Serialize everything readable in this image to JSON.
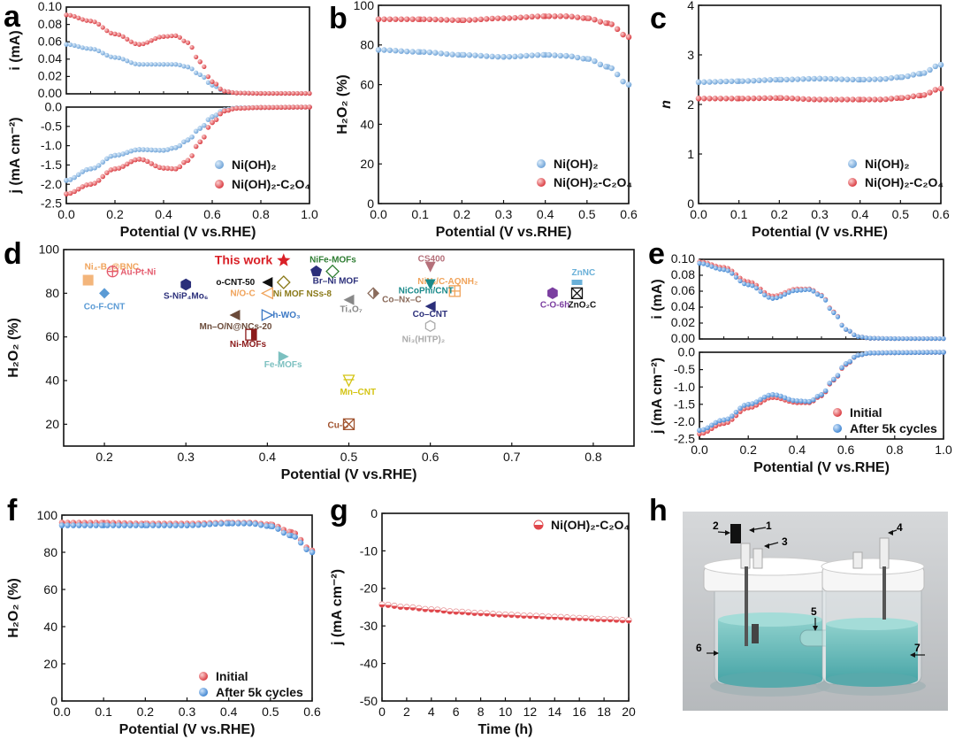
{
  "panels": {
    "a": "a",
    "b": "b",
    "c": "c",
    "d": "d",
    "e": "e",
    "f": "f",
    "g": "g",
    "h": "h"
  },
  "colors": {
    "blue": "#7aaedc",
    "red": "#e0464b",
    "text": "#111111"
  },
  "legend": {
    "ni_oh2": "Ni(OH)₂",
    "ni_oh2_c2o4": "Ni(OH)₂-C₂O₄",
    "initial": "Initial",
    "after": "After 5k cycles"
  },
  "chart_data": [
    {
      "id": "a-top",
      "type": "line",
      "panel": "a",
      "ylabel": "i (mA)",
      "xlabel": "",
      "xlim": [
        0,
        1
      ],
      "ylim": [
        0,
        0.1
      ],
      "yticks": [
        "0.00",
        "0.02",
        "0.04",
        "0.06",
        "0.08",
        "0.10"
      ],
      "series": [
        {
          "name": "Ni(OH)₂",
          "color": "#7aaedc",
          "x": [
            0,
            0.1,
            0.2,
            0.3,
            0.4,
            0.45,
            0.5,
            0.55,
            0.6,
            0.65,
            0.7,
            0.8,
            1.0
          ],
          "y": [
            0.057,
            0.052,
            0.042,
            0.034,
            0.034,
            0.034,
            0.031,
            0.022,
            0.01,
            0.003,
            0.001,
            0.0005,
            0.0005
          ]
        },
        {
          "name": "Ni(OH)₂-C₂O₄",
          "color": "#e0464b",
          "x": [
            0,
            0.1,
            0.2,
            0.3,
            0.4,
            0.45,
            0.5,
            0.55,
            0.6,
            0.65,
            0.7,
            0.8,
            1.0
          ],
          "y": [
            0.091,
            0.084,
            0.069,
            0.057,
            0.066,
            0.067,
            0.059,
            0.037,
            0.014,
            0.003,
            0.001,
            0.0005,
            0.0005
          ]
        }
      ]
    },
    {
      "id": "a-bottom",
      "type": "line",
      "panel": "a",
      "ylabel": "j (mA cm⁻²)",
      "xlabel": "Potential (V vs.RHE)",
      "xlim": [
        0,
        1
      ],
      "ylim": [
        -2.5,
        0
      ],
      "xticks": [
        "0.0",
        "0.2",
        "0.4",
        "0.6",
        "0.8",
        "1.0"
      ],
      "yticks": [
        "-2.5",
        "-2.0",
        "-1.5",
        "-1.0",
        "-0.5",
        "0.0"
      ],
      "series": [
        {
          "name": "Ni(OH)₂",
          "color": "#7aaedc",
          "x": [
            0,
            0.1,
            0.2,
            0.3,
            0.4,
            0.45,
            0.5,
            0.55,
            0.6,
            0.65,
            0.7,
            0.8,
            1.0
          ],
          "y": [
            -1.9,
            -1.6,
            -1.25,
            -1.1,
            -1.12,
            -1.05,
            -0.85,
            -0.55,
            -0.25,
            -0.07,
            -0.02,
            -0.01,
            0
          ]
        },
        {
          "name": "Ni(OH)₂-C₂O₄",
          "color": "#e0464b",
          "x": [
            0,
            0.1,
            0.2,
            0.3,
            0.4,
            0.45,
            0.5,
            0.55,
            0.6,
            0.65,
            0.7,
            0.8,
            1.0
          ],
          "y": [
            -2.25,
            -2.0,
            -1.6,
            -1.35,
            -1.58,
            -1.6,
            -1.38,
            -0.9,
            -0.4,
            -0.1,
            -0.03,
            -0.01,
            0
          ]
        }
      ]
    },
    {
      "id": "b",
      "type": "line",
      "panel": "b",
      "ylabel": "H₂O₂ (%)",
      "xlabel": "Potential (V vs.RHE)",
      "xlim": [
        0,
        0.6
      ],
      "ylim": [
        0,
        100
      ],
      "xticks": [
        "0.0",
        "0.1",
        "0.2",
        "0.3",
        "0.4",
        "0.5",
        "0.6"
      ],
      "yticks": [
        "0",
        "20",
        "40",
        "60",
        "80",
        "100"
      ],
      "series": [
        {
          "name": "Ni(OH)₂",
          "color": "#7aaedc",
          "x": [
            0,
            0.1,
            0.2,
            0.3,
            0.4,
            0.45,
            0.5,
            0.55,
            0.6
          ],
          "y": [
            77.5,
            76.5,
            75,
            74,
            75,
            74.5,
            73,
            69,
            60
          ]
        },
        {
          "name": "Ni(OH)₂-C₂O₄",
          "color": "#e0464b",
          "x": [
            0,
            0.1,
            0.2,
            0.3,
            0.4,
            0.45,
            0.5,
            0.55,
            0.6
          ],
          "y": [
            93,
            93,
            92.5,
            93.5,
            94.5,
            94.5,
            93.5,
            91,
            84
          ]
        }
      ]
    },
    {
      "id": "c",
      "type": "line",
      "panel": "c",
      "ylabel": "n",
      "xlabel": "Potential (V vs.RHE)",
      "xlim": [
        0,
        0.6
      ],
      "ylim": [
        0,
        4
      ],
      "xticks": [
        "0.0",
        "0.1",
        "0.2",
        "0.3",
        "0.4",
        "0.5",
        "0.6"
      ],
      "yticks": [
        "0",
        "1",
        "2",
        "3",
        "4"
      ],
      "series": [
        {
          "name": "Ni(OH)₂",
          "color": "#7aaedc",
          "x": [
            0,
            0.1,
            0.2,
            0.3,
            0.4,
            0.45,
            0.5,
            0.55,
            0.6
          ],
          "y": [
            2.45,
            2.47,
            2.5,
            2.52,
            2.5,
            2.51,
            2.55,
            2.62,
            2.8
          ]
        },
        {
          "name": "Ni(OH)₂-C₂O₄",
          "color": "#e0464b",
          "x": [
            0,
            0.1,
            0.2,
            0.3,
            0.4,
            0.45,
            0.5,
            0.55,
            0.6
          ],
          "y": [
            2.12,
            2.12,
            2.13,
            2.1,
            2.1,
            2.1,
            2.13,
            2.18,
            2.32
          ]
        }
      ]
    },
    {
      "id": "d",
      "type": "scatter",
      "panel": "d",
      "ylabel": "H₂O₂ (%)",
      "xlabel": "Potential (V vs.RHE)",
      "xlim": [
        0.15,
        0.85
      ],
      "ylim": [
        10,
        100
      ],
      "xticks": [
        "0.2",
        "0.3",
        "0.4",
        "0.5",
        "0.6",
        "0.7",
        "0.8"
      ],
      "yticks": [
        "20",
        "40",
        "60",
        "80",
        "100"
      ],
      "points": [
        {
          "label": "This work",
          "x": 0.42,
          "y": 95,
          "color": "#d92027",
          "marker": "star"
        },
        {
          "label": "Ni₄-B₄@BNC",
          "x": 0.18,
          "y": 86,
          "color": "#f0a35a",
          "marker": "square"
        },
        {
          "label": "Au-Pt-Ni",
          "x": 0.21,
          "y": 90,
          "color": "#e45a6c",
          "marker": "circle-cross"
        },
        {
          "label": "Co-F-CNT",
          "x": 0.2,
          "y": 80,
          "color": "#5b9bd5",
          "marker": "diamond"
        },
        {
          "label": "S-NiP₄Mo₆",
          "x": 0.3,
          "y": 84,
          "color": "#2b2f7a",
          "marker": "hexagon"
        },
        {
          "label": "o-CNT-50",
          "x": 0.4,
          "y": 85,
          "color": "#111111",
          "marker": "triangle-left"
        },
        {
          "label": "N/O-C",
          "x": 0.4,
          "y": 80,
          "color": "#f0a35a",
          "marker": "triangle-left-open"
        },
        {
          "label": "Ni MOF NSs-8",
          "x": 0.42,
          "y": 85,
          "color": "#8b7a1a",
          "marker": "diamond-open"
        },
        {
          "label": "Br–Ni MOF",
          "x": 0.46,
          "y": 90,
          "color": "#2b2f7a",
          "marker": "pentagon"
        },
        {
          "label": "NiFe-MOFs",
          "x": 0.48,
          "y": 90,
          "color": "#2e7d32",
          "marker": "diamond-open"
        },
        {
          "label": "h-WO₃",
          "x": 0.4,
          "y": 70,
          "color": "#3b78c4",
          "marker": "triangle-right-open"
        },
        {
          "label": "Mn–O/N@NCs-20",
          "x": 0.36,
          "y": 70,
          "color": "#6b4b3a",
          "marker": "triangle-left"
        },
        {
          "label": "Ni-MOFs",
          "x": 0.38,
          "y": 61,
          "color": "#8b1a1a",
          "marker": "half-square"
        },
        {
          "label": "Fe-MOFs",
          "x": 0.42,
          "y": 51,
          "color": "#7cc0c0",
          "marker": "triangle-right"
        },
        {
          "label": "Ti₄O₇",
          "x": 0.5,
          "y": 77,
          "color": "#888888",
          "marker": "triangle-left"
        },
        {
          "label": "Co–Nx–C",
          "x": 0.53,
          "y": 80,
          "color": "#8a6a5a",
          "marker": "diamond-half"
        },
        {
          "label": "CS400",
          "x": 0.6,
          "y": 92,
          "color": "#b5707a",
          "marker": "triangle-down"
        },
        {
          "label": "NiNₓ/C-AQNH₂",
          "x": 0.63,
          "y": 81,
          "color": "#f0a35a",
          "marker": "square-cross"
        },
        {
          "label": "NiCoPhi/CNT",
          "x": 0.6,
          "y": 84,
          "color": "#1a8a8a",
          "marker": "triangle-down"
        },
        {
          "label": "Co–CNT",
          "x": 0.6,
          "y": 74,
          "color": "#2b2f7a",
          "marker": "triangle-left"
        },
        {
          "label": "Ni₃(HITP)₂",
          "x": 0.6,
          "y": 65,
          "color": "#aaaaaa",
          "marker": "hexagon-open"
        },
        {
          "label": "Mn–CNT",
          "x": 0.5,
          "y": 40,
          "color": "#d4c414",
          "marker": "triangle-down-cross"
        },
        {
          "label": "Cu-C",
          "x": 0.5,
          "y": 20,
          "color": "#a0522d",
          "marker": "x-box"
        },
        {
          "label": "C-O-6h",
          "x": 0.75,
          "y": 80,
          "color": "#7b3fa0",
          "marker": "hexagon"
        },
        {
          "label": "ZnNC",
          "x": 0.78,
          "y": 85,
          "color": "#6ab0d8",
          "marker": "bar"
        },
        {
          "label": "ZnO₂C",
          "x": 0.78,
          "y": 80,
          "color": "#111111",
          "marker": "x-box"
        }
      ]
    },
    {
      "id": "e-top",
      "type": "line",
      "panel": "e",
      "ylabel": "i (mA)",
      "xlabel": "",
      "xlim": [
        0,
        1
      ],
      "ylim": [
        0,
        0.1
      ],
      "yticks": [
        "0.00",
        "0.02",
        "0.04",
        "0.06",
        "0.08",
        "0.10"
      ],
      "series": [
        {
          "name": "Initial",
          "color": "#e0464b",
          "x": [
            0,
            0.1,
            0.2,
            0.3,
            0.4,
            0.45,
            0.5,
            0.55,
            0.6,
            0.65,
            0.7,
            0.8,
            1.0
          ],
          "y": [
            0.097,
            0.09,
            0.072,
            0.054,
            0.063,
            0.063,
            0.055,
            0.034,
            0.012,
            0.003,
            0.001,
            0.0005,
            0.0005
          ]
        },
        {
          "name": "After 5k cycles",
          "color": "#4a8fd4",
          "x": [
            0,
            0.1,
            0.2,
            0.3,
            0.4,
            0.45,
            0.5,
            0.55,
            0.6,
            0.65,
            0.7,
            0.8,
            1.0
          ],
          "y": [
            0.095,
            0.087,
            0.068,
            0.051,
            0.061,
            0.062,
            0.054,
            0.033,
            0.012,
            0.003,
            0.001,
            0.0005,
            0.0005
          ]
        }
      ]
    },
    {
      "id": "e-bottom",
      "type": "line",
      "panel": "e",
      "ylabel": "j (mA cm⁻²)",
      "xlabel": "Potential (V vs.RHE)",
      "xlim": [
        0,
        1
      ],
      "ylim": [
        -2.5,
        0
      ],
      "xticks": [
        "0.0",
        "0.2",
        "0.4",
        "0.6",
        "0.8",
        "1.0"
      ],
      "yticks": [
        "-2.5",
        "-2.0",
        "-1.5",
        "-1.0",
        "-0.5",
        "0.0"
      ],
      "series": [
        {
          "name": "Initial",
          "color": "#e0464b",
          "x": [
            0,
            0.1,
            0.2,
            0.3,
            0.4,
            0.45,
            0.5,
            0.55,
            0.6,
            0.65,
            0.7,
            0.8,
            1.0
          ],
          "y": [
            -2.35,
            -2.05,
            -1.6,
            -1.3,
            -1.45,
            -1.45,
            -1.25,
            -0.8,
            -0.35,
            -0.08,
            -0.02,
            -0.01,
            0
          ]
        },
        {
          "name": "After 5k cycles",
          "color": "#4a8fd4",
          "x": [
            0,
            0.1,
            0.2,
            0.3,
            0.4,
            0.45,
            0.5,
            0.55,
            0.6,
            0.65,
            0.7,
            0.8,
            1.0
          ],
          "y": [
            -2.25,
            -1.95,
            -1.5,
            -1.22,
            -1.4,
            -1.42,
            -1.22,
            -0.78,
            -0.33,
            -0.08,
            -0.02,
            -0.01,
            0
          ]
        }
      ]
    },
    {
      "id": "f",
      "type": "line",
      "panel": "f",
      "ylabel": "H₂O₂ (%)",
      "xlabel": "Potential (V vs.RHE)",
      "xlim": [
        0,
        0.6
      ],
      "ylim": [
        0,
        100
      ],
      "xticks": [
        "0.0",
        "0.1",
        "0.2",
        "0.3",
        "0.4",
        "0.5",
        "0.6"
      ],
      "yticks": [
        "0",
        "20",
        "40",
        "60",
        "80",
        "100"
      ],
      "series": [
        {
          "name": "Initial",
          "color": "#e0464b",
          "x": [
            0,
            0.1,
            0.2,
            0.3,
            0.4,
            0.45,
            0.5,
            0.55,
            0.6
          ],
          "y": [
            96,
            96,
            95.5,
            95.5,
            96,
            96,
            95,
            91,
            81
          ]
        },
        {
          "name": "After 5k cycles",
          "color": "#4a8fd4",
          "x": [
            0,
            0.1,
            0.2,
            0.3,
            0.4,
            0.45,
            0.5,
            0.55,
            0.6
          ],
          "y": [
            94.5,
            94.5,
            94.5,
            94.5,
            95.5,
            95.5,
            94,
            89,
            80
          ]
        }
      ]
    },
    {
      "id": "g",
      "type": "line",
      "panel": "g",
      "ylabel": "j (mA cm⁻²)",
      "xlabel": "Time (h)",
      "xlim": [
        0,
        20
      ],
      "ylim": [
        -50,
        0
      ],
      "xticks": [
        "0",
        "2",
        "4",
        "6",
        "8",
        "10",
        "12",
        "14",
        "16",
        "18",
        "20"
      ],
      "yticks": [
        "-50",
        "-40",
        "-30",
        "-20",
        "-10",
        "0"
      ],
      "series": [
        {
          "name": "Ni(OH)₂-C₂O₄",
          "color": "#e0464b",
          "x": [
            0,
            2,
            4,
            6,
            8,
            10,
            12,
            14,
            16,
            18,
            20
          ],
          "y": [
            -24.3,
            -25,
            -25.6,
            -26.2,
            -26.6,
            -27,
            -27.3,
            -27.6,
            -27.9,
            -28.2,
            -28.5
          ]
        }
      ]
    }
  ],
  "photo": {
    "labels": [
      "1",
      "2",
      "3",
      "4",
      "5",
      "6",
      "7"
    ]
  }
}
